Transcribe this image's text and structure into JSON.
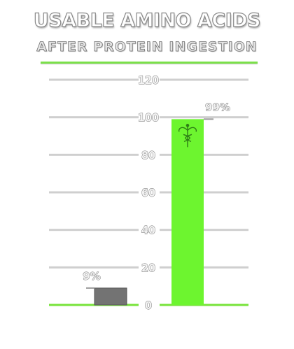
{
  "header": {
    "title": "USABLE AMINO ACIDS",
    "subtitle": "AFTER PROTEIN INGESTION"
  },
  "colors": {
    "accent": "#77e33a",
    "bar_gray": "#737373",
    "bar_green": "#6df52f",
    "gridline": "#cfcfcf"
  },
  "chart_data": {
    "type": "bar",
    "title": "USABLE AMINO ACIDS",
    "subtitle": "AFTER PROTEIN INGESTION",
    "categories": [
      "",
      ""
    ],
    "values": [
      9,
      99
    ],
    "data_labels": [
      "9%",
      "99%"
    ],
    "ylim": [
      0,
      120
    ],
    "yticks": [
      0,
      20,
      40,
      60,
      80,
      100,
      120
    ],
    "grid": true,
    "bar_colors": [
      "#737373",
      "#6df52f"
    ],
    "icons": [
      "",
      "caduceus-icon"
    ]
  }
}
